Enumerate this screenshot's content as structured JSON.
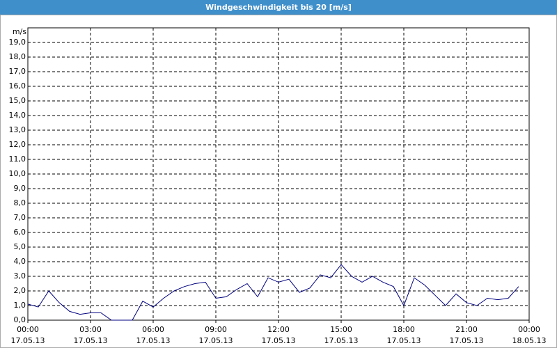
{
  "chart_data": {
    "type": "line",
    "title": "Windgeschwindigkeit bis 20 [m/s]",
    "y_label": "m/s",
    "x": [
      0,
      0.5,
      1,
      1.5,
      2,
      2.5,
      3,
      3.5,
      4,
      4.5,
      5,
      5.5,
      6,
      6.5,
      7,
      7.5,
      8,
      8.5,
      9,
      9.5,
      10,
      10.5,
      11,
      11.5,
      12,
      12.5,
      13,
      13.5,
      14,
      14.5,
      15,
      15.5,
      16,
      16.5,
      17,
      17.5,
      18,
      18.5,
      19,
      19.5,
      20,
      20.5,
      21,
      21.5,
      22,
      22.5,
      23,
      23.5
    ],
    "series": [
      {
        "name": "Windgeschwindigkeit",
        "color": "#00007f",
        "values": [
          1.1,
          0.9,
          2.0,
          1.2,
          0.6,
          0.4,
          0.5,
          0.5,
          0,
          0,
          0,
          1.3,
          0.9,
          1.5,
          2.0,
          2.3,
          2.5,
          2.6,
          1.5,
          1.6,
          2.1,
          2.5,
          1.6,
          2.9,
          2.6,
          2.8,
          1.9,
          2.2,
          3.1,
          2.9,
          3.8,
          3.0,
          2.6,
          3.0,
          2.6,
          2.3,
          1.0,
          2.9,
          2.4,
          1.7,
          1.0,
          1.8,
          1.2,
          1.0,
          1.5,
          1.4,
          1.5,
          2.3
        ]
      }
    ],
    "xlim": [
      0,
      24
    ],
    "xticks": [
      {
        "value": 0,
        "label": "00:00 17.05.13"
      },
      {
        "value": 3,
        "label": "03:00 17.05.13"
      },
      {
        "value": 6,
        "label": "06:00 17.05.13"
      },
      {
        "value": 9,
        "label": "09:00 17.05.13"
      },
      {
        "value": 12,
        "label": "12:00 17.05.13"
      },
      {
        "value": 15,
        "label": "15:00 17.05.13"
      },
      {
        "value": 18,
        "label": "18:00 17.05.13"
      },
      {
        "value": 21,
        "label": "21:00 17.05.13"
      },
      {
        "value": 24,
        "label": "00:00 18.05.13"
      }
    ],
    "ylim": [
      0,
      20
    ],
    "yticks": [
      {
        "value": 0,
        "label": "0,0"
      },
      {
        "value": 1,
        "label": "1,0"
      },
      {
        "value": 2,
        "label": "2,0"
      },
      {
        "value": 3,
        "label": "3,0"
      },
      {
        "value": 4,
        "label": "4,0"
      },
      {
        "value": 5,
        "label": "5,0"
      },
      {
        "value": 6,
        "label": "6,0"
      },
      {
        "value": 7,
        "label": "7,0"
      },
      {
        "value": 8,
        "label": "8,0"
      },
      {
        "value": 9,
        "label": "9,0"
      },
      {
        "value": 10,
        "label": "10,0"
      },
      {
        "value": 11,
        "label": "11,0"
      },
      {
        "value": 12,
        "label": "12,0"
      },
      {
        "value": 13,
        "label": "13,0"
      },
      {
        "value": 14,
        "label": "14,0"
      },
      {
        "value": 15,
        "label": "15,0"
      },
      {
        "value": 16,
        "label": "16,0"
      },
      {
        "value": 17,
        "label": "17,0"
      },
      {
        "value": 18,
        "label": "18,0"
      },
      {
        "value": 19,
        "label": "19,0"
      }
    ],
    "grid": true
  }
}
